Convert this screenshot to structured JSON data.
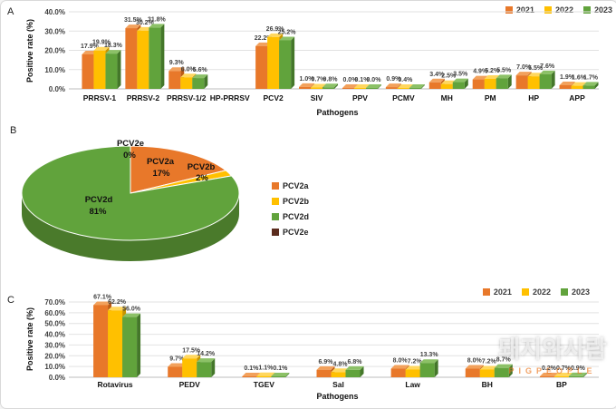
{
  "figure": {
    "panels": {
      "a": "A",
      "b": "B",
      "c": "C"
    }
  },
  "axis": {
    "y_title": "Positive rate (%)",
    "x_title": "Pathogens"
  },
  "watermark": {
    "korean": "돼지와사람",
    "english": "PIGPEOPLE"
  },
  "chart_data": [
    {
      "id": "A",
      "type": "bar",
      "ylabel": "Positive rate (%)",
      "xlabel": "Pathogens",
      "ylim": [
        0,
        40
      ],
      "yticks": [
        "0.0%",
        "10.0%",
        "20.0%",
        "30.0%",
        "40.0%"
      ],
      "grid": true,
      "legend_position": "top-right",
      "categories": [
        "PRRSV-1",
        "PRRSV-2",
        "PRRSV-1/2",
        "HP-PRRSV",
        "PCV2",
        "SIV",
        "PPV",
        "PCMV",
        "MH",
        "PM",
        "HP",
        "APP"
      ],
      "series": [
        {
          "name": "2021",
          "color": "#E8782A",
          "top": "#F2A15C",
          "side": "#BC5A14",
          "values": [
            17.9,
            31.5,
            9.3,
            0,
            22.2,
            1.0,
            0.0,
            0.9,
            3.4,
            4.9,
            7.0,
            1.9
          ],
          "labels": [
            "17.9%",
            "31.5%",
            "9.3%",
            "",
            "22.2%",
            "1.0%",
            "0.0%",
            "0.9%",
            "3.4%",
            "4.9%",
            "7.0%",
            "1.9%"
          ]
        },
        {
          "name": "2022",
          "color": "#FFC000",
          "top": "#FFD75E",
          "side": "#C79400",
          "values": [
            19.9,
            30.2,
            6.0,
            0,
            26.9,
            0.7,
            0.1,
            0.4,
            2.5,
            5.2,
            6.5,
            1.6
          ],
          "labels": [
            "19.9%",
            "30.2%",
            "6.0%",
            "",
            "26.9%",
            "0.7%",
            "0.1%",
            "0.4%",
            "2.5%",
            "5.2%",
            "6.5%",
            "1.6%"
          ]
        },
        {
          "name": "2023",
          "color": "#61A33C",
          "top": "#8CC167",
          "side": "#44772A",
          "values": [
            18.3,
            31.8,
            5.6,
            0,
            25.2,
            0.8,
            0.0,
            0.4,
            3.5,
            5.5,
            7.6,
            1.7
          ],
          "labels": [
            "18.3%",
            "31.8%",
            "5.6%",
            "",
            "25.2%",
            "0.8%",
            "0.0%",
            "",
            "3.5%",
            "5.5%",
            "7.6%",
            "1.7%"
          ]
        }
      ]
    },
    {
      "id": "B",
      "type": "pie",
      "slices": [
        {
          "name": "PCV2e",
          "pct": "0%",
          "value": 0,
          "color": "#5B2C1E"
        },
        {
          "name": "PCV2a",
          "pct": "17%",
          "value": 17,
          "color": "#E8782A"
        },
        {
          "name": "PCV2b",
          "pct": "2%",
          "value": 2,
          "color": "#FFC000"
        },
        {
          "name": "PCV2d",
          "pct": "81%",
          "value": 81,
          "color": "#61A33C",
          "side": "#4A7A2B"
        }
      ],
      "legend_order": [
        "PCV2a",
        "PCV2b",
        "PCV2d",
        "PCV2e"
      ],
      "legend_position": "right"
    },
    {
      "id": "C",
      "type": "bar",
      "ylabel": "Positive rate (%)",
      "xlabel": "Pathogens",
      "ylim": [
        0,
        70
      ],
      "yticks": [
        "0.0%",
        "10.0%",
        "20.0%",
        "30.0%",
        "40.0%",
        "50.0%",
        "60.0%",
        "70.0%"
      ],
      "grid": true,
      "legend_position": "top-right",
      "categories": [
        "Rotavirus",
        "PEDV",
        "TGEV",
        "Sal",
        "Law",
        "BH",
        "BP"
      ],
      "series": [
        {
          "name": "2021",
          "color": "#E8782A",
          "top": "#F2A15C",
          "side": "#BC5A14",
          "values": [
            67.1,
            9.7,
            0.1,
            6.9,
            8.0,
            8.0,
            0.2
          ],
          "labels": [
            "67.1%",
            "9.7%",
            "0.1%",
            "6.9%",
            "8.0%",
            "8.0%",
            "0.2%"
          ]
        },
        {
          "name": "2022",
          "color": "#FFC000",
          "top": "#FFD75E",
          "side": "#C79400",
          "values": [
            62.2,
            17.5,
            1.1,
            4.8,
            7.2,
            7.2,
            0.7
          ],
          "labels": [
            "62.2%",
            "17.5%",
            "1.1%",
            "4.8%",
            "7.2%",
            "7.2%",
            "0.7%"
          ]
        },
        {
          "name": "2023",
          "color": "#61A33C",
          "top": "#8CC167",
          "side": "#44772A",
          "values": [
            56.0,
            14.2,
            0.1,
            6.8,
            13.3,
            8.7,
            0.9
          ],
          "labels": [
            "56.0%",
            "14.2%",
            "0.1%",
            "6.8%",
            "13.3%",
            "8.7%",
            "0.9%"
          ]
        }
      ]
    }
  ]
}
